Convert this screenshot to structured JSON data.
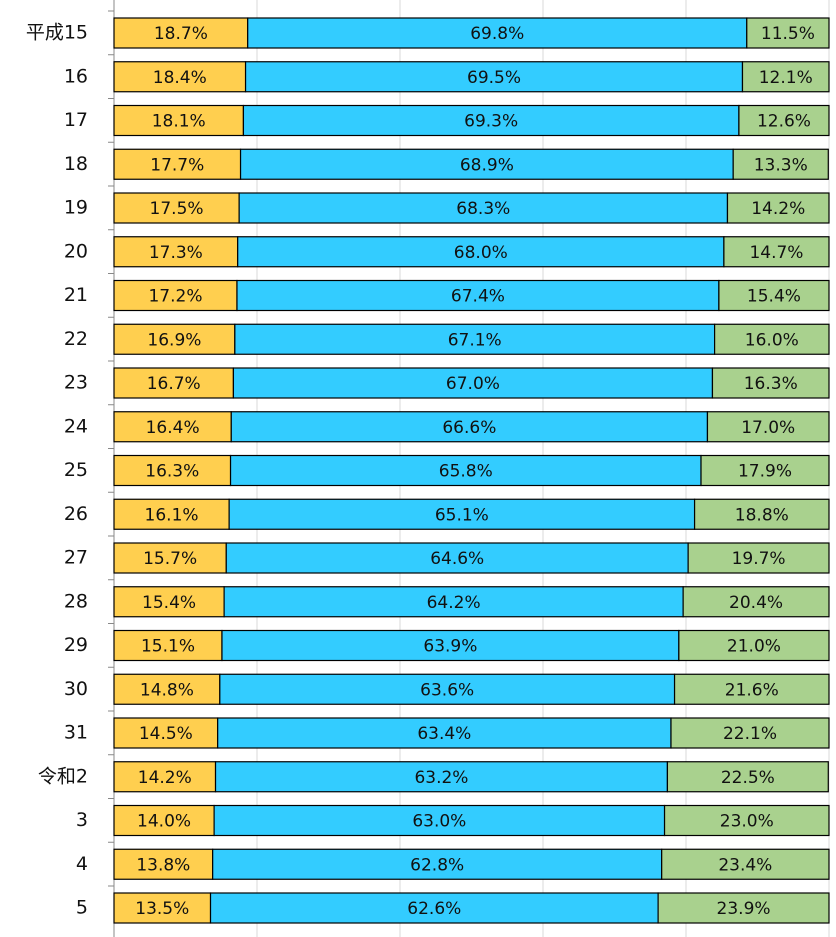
{
  "chart_data": {
    "type": "stacked-barh",
    "categories": [
      "平成15",
      "16",
      "17",
      "18",
      "19",
      "20",
      "21",
      "22",
      "23",
      "24",
      "25",
      "26",
      "27",
      "28",
      "29",
      "30",
      "31",
      "令和2",
      "3",
      "4",
      "5"
    ],
    "series": [
      {
        "color": "#ffcf4f",
        "values": [
          18.7,
          18.4,
          18.1,
          17.7,
          17.5,
          17.3,
          17.2,
          16.9,
          16.7,
          16.4,
          16.3,
          16.1,
          15.7,
          15.4,
          15.1,
          14.8,
          14.5,
          14.2,
          14.0,
          13.8,
          13.5
        ],
        "value_labels": [
          "18.7%",
          "18.4%",
          "18.1%",
          "17.7%",
          "17.5%",
          "17.3%",
          "17.2%",
          "16.9%",
          "16.7%",
          "16.4%",
          "16.3%",
          "16.1%",
          "15.7%",
          "15.4%",
          "15.1%",
          "14.8%",
          "14.5%",
          "14.2%",
          "14.0%",
          "13.8%",
          "13.5%"
        ]
      },
      {
        "color": "#33ccff",
        "values": [
          69.8,
          69.5,
          69.3,
          68.9,
          68.3,
          68.0,
          67.4,
          67.1,
          67.0,
          66.6,
          65.8,
          65.1,
          64.6,
          64.2,
          63.9,
          63.6,
          63.4,
          63.2,
          63.0,
          62.8,
          62.6
        ],
        "value_labels": [
          "69.8%",
          "69.5%",
          "69.3%",
          "68.9%",
          "68.3%",
          "68.0%",
          "67.4%",
          "67.1%",
          "67.0%",
          "66.6%",
          "65.8%",
          "65.1%",
          "64.6%",
          "64.2%",
          "63.9%",
          "63.6%",
          "63.4%",
          "63.2%",
          "63.0%",
          "62.8%",
          "62.6%"
        ]
      },
      {
        "color": "#a9d18e",
        "values": [
          11.5,
          12.1,
          12.6,
          13.3,
          14.2,
          14.7,
          15.4,
          16.0,
          16.3,
          17.0,
          17.9,
          18.8,
          19.7,
          20.4,
          21.0,
          21.6,
          22.1,
          22.5,
          23.0,
          23.4,
          23.9
        ],
        "value_labels": [
          "11.5%",
          "12.1%",
          "12.6%",
          "13.3%",
          "14.2%",
          "14.7%",
          "15.4%",
          "16.0%",
          "16.3%",
          "17.0%",
          "17.9%",
          "18.8%",
          "19.7%",
          "20.4%",
          "21.0%",
          "21.6%",
          "22.1%",
          "22.5%",
          "23.0%",
          "23.4%",
          "23.9%"
        ]
      }
    ],
    "xlim": [
      0,
      100
    ],
    "xticks": [
      0,
      20,
      40,
      60,
      80,
      100
    ],
    "grid": true
  }
}
